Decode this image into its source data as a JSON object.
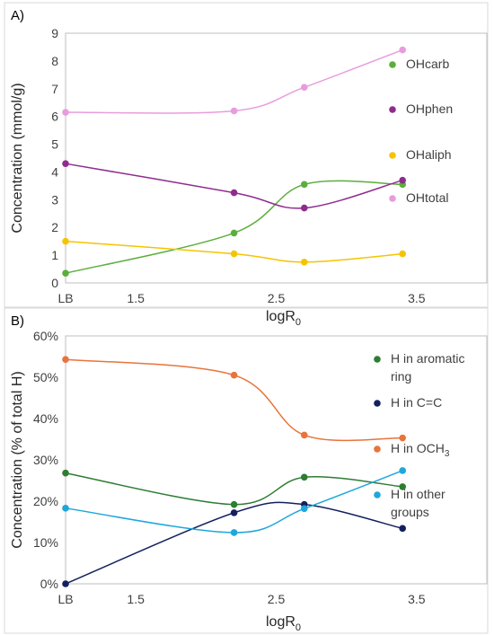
{
  "chart_data": [
    {
      "type": "scatter",
      "panel_label": "A)",
      "xlabel_main": "logR",
      "xlabel_sub": "0",
      "ylabel": "Concentration (mmol/g)",
      "xlim": [
        1,
        4
      ],
      "ylim": [
        0,
        9
      ],
      "x_ticks": [
        {
          "value": 1,
          "label": "LB"
        },
        {
          "value": 1.5,
          "label": "1.5"
        },
        {
          "value": 2.5,
          "label": "2.5"
        },
        {
          "value": 3.5,
          "label": "3.5"
        }
      ],
      "y_ticks": [
        {
          "value": 0,
          "label": "0"
        },
        {
          "value": 1,
          "label": "1"
        },
        {
          "value": 2,
          "label": "2"
        },
        {
          "value": 3,
          "label": "3"
        },
        {
          "value": 4,
          "label": "4"
        },
        {
          "value": 5,
          "label": "5"
        },
        {
          "value": 6,
          "label": "6"
        },
        {
          "value": 7,
          "label": "7"
        },
        {
          "value": 8,
          "label": "8"
        },
        {
          "value": 9,
          "label": "9"
        }
      ],
      "x": [
        1,
        2.2,
        2.7,
        3.4
      ],
      "series": [
        {
          "name": "OHcarb",
          "color": "#5BAE3C",
          "values": [
            0.35,
            1.8,
            3.55,
            3.55
          ]
        },
        {
          "name": "OHphen",
          "color": "#8E2C8E",
          "values": [
            4.3,
            3.25,
            2.7,
            3.7
          ]
        },
        {
          "name": "OHaliph",
          "color": "#F5C400",
          "values": [
            1.5,
            1.05,
            0.75,
            1.05
          ]
        },
        {
          "name": "OHtotal",
          "color": "#E89CDD",
          "values": [
            6.15,
            6.2,
            7.05,
            8.4
          ]
        }
      ],
      "legend_position": "right",
      "grid": false
    },
    {
      "type": "scatter",
      "panel_label": "B)",
      "xlabel_main": "logR",
      "xlabel_sub": "0",
      "ylabel": "Concentration (% of total H)",
      "xlim": [
        1,
        4
      ],
      "ylim": [
        0,
        60
      ],
      "x_ticks": [
        {
          "value": 1,
          "label": "LB"
        },
        {
          "value": 1.5,
          "label": "1.5"
        },
        {
          "value": 2.5,
          "label": "2.5"
        },
        {
          "value": 3.5,
          "label": "3.5"
        }
      ],
      "y_ticks": [
        {
          "value": 0,
          "label": "0%"
        },
        {
          "value": 10,
          "label": "10%"
        },
        {
          "value": 20,
          "label": "20%"
        },
        {
          "value": 30,
          "label": "30%"
        },
        {
          "value": 40,
          "label": "40%"
        },
        {
          "value": 50,
          "label": "50%"
        },
        {
          "value": 60,
          "label": "60%"
        }
      ],
      "x": [
        1,
        2.2,
        2.7,
        3.4
      ],
      "series": [
        {
          "name": "H in aromatic ring",
          "legend_lines": [
            "H in aromatic",
            "ring"
          ],
          "color": "#2E7D32",
          "values": [
            26.8,
            19.2,
            25.8,
            23.5
          ]
        },
        {
          "name": "H in C=C",
          "legend_lines": [
            "H in C=C"
          ],
          "color": "#14205E",
          "values": [
            0,
            17.2,
            19.2,
            13.4
          ]
        },
        {
          "name": "H in OCH3",
          "legend_lines": [
            "H in OCH"
          ],
          "legend_sub": "3",
          "color": "#E8743B",
          "values": [
            54.3,
            50.5,
            36.0,
            35.3
          ]
        },
        {
          "name": "H in other groups",
          "legend_lines": [
            "H in other",
            "groups"
          ],
          "color": "#1EA7DB",
          "values": [
            18.3,
            12.4,
            18.2,
            27.4
          ]
        }
      ],
      "legend_position": "right",
      "grid": false
    }
  ]
}
